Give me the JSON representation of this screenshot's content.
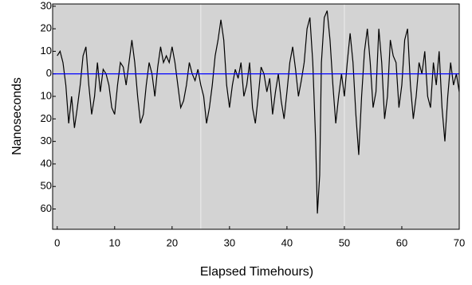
{
  "chart_data": {
    "type": "line",
    "xlabel": "Elapsed Timehours)",
    "ylabel": "Nanoseconds",
    "xlim": [
      -0.8,
      70
    ],
    "ylim": [
      -69,
      31
    ],
    "xticks": [
      0,
      10,
      20,
      30,
      40,
      50,
      60,
      70
    ],
    "yticks": [
      30,
      20,
      10,
      0,
      {
        "value": -10,
        "label": "10"
      },
      {
        "value": -20,
        "label": "20"
      },
      {
        "value": -30,
        "label": "30"
      },
      {
        "value": -40,
        "label": "40"
      },
      {
        "value": -50,
        "label": "50"
      },
      {
        "value": -60,
        "label": "60"
      }
    ],
    "vertical_grid": [
      25,
      50
    ],
    "reference_line": {
      "value": 0,
      "color": "#0000ff"
    },
    "background": "#d3d3d3",
    "x": [
      0,
      0.5,
      1,
      1.5,
      2,
      2.5,
      3,
      3.5,
      4,
      4.5,
      5,
      5.5,
      6,
      6.5,
      7,
      7.5,
      8,
      8.5,
      9,
      9.5,
      10,
      10.5,
      11,
      11.5,
      12,
      12.5,
      13,
      13.5,
      14,
      14.5,
      15,
      15.5,
      16,
      16.5,
      17,
      17.5,
      18,
      18.5,
      19,
      19.5,
      20,
      20.5,
      21,
      21.5,
      22,
      22.5,
      23,
      23.5,
      24,
      24.5,
      25,
      25.5,
      26,
      26.5,
      27,
      27.5,
      28,
      28.5,
      29,
      29.5,
      30,
      30.5,
      31,
      31.5,
      32,
      32.5,
      33,
      33.5,
      34,
      34.5,
      35,
      35.5,
      36,
      36.5,
      37,
      37.5,
      38,
      38.5,
      39,
      39.5,
      40,
      40.5,
      41,
      41.5,
      42,
      42.5,
      43,
      43.5,
      44,
      44.5,
      45,
      45.3,
      45.7,
      46,
      46.5,
      47,
      47.5,
      48,
      48.5,
      49,
      49.5,
      50,
      50.5,
      51,
      51.5,
      52,
      52.5,
      53,
      53.5,
      54,
      54.5,
      55,
      55.5,
      56,
      56.5,
      57,
      57.5,
      58,
      58.5,
      59,
      59.5,
      60,
      60.5,
      61,
      61.5,
      62,
      62.5,
      63,
      63.5,
      64,
      64.5,
      65,
      65.5,
      66,
      66.5,
      67,
      67.5,
      68,
      68.5,
      69,
      69.5,
      70
    ],
    "series": [
      {
        "color": "#000000",
        "values": [
          8,
          10,
          5,
          -5,
          -22,
          -10,
          -24,
          -15,
          -5,
          8,
          12,
          -5,
          -18,
          -10,
          5,
          -8,
          2,
          0,
          -5,
          -15,
          -18,
          -5,
          5,
          3,
          -5,
          5,
          15,
          5,
          -10,
          -22,
          -18,
          -5,
          5,
          0,
          -10,
          3,
          12,
          5,
          8,
          5,
          12,
          5,
          -5,
          -15,
          -12,
          -5,
          5,
          0,
          -3,
          2,
          -5,
          -10,
          -22,
          -15,
          -5,
          8,
          15,
          24,
          15,
          -5,
          -15,
          -5,
          2,
          -2,
          5,
          -10,
          -5,
          5,
          -15,
          -22,
          -10,
          3,
          0,
          -8,
          -2,
          -18,
          -8,
          0,
          -12,
          -20,
          -8,
          5,
          12,
          2,
          -10,
          -3,
          5,
          20,
          25,
          5,
          -30,
          -62,
          -45,
          5,
          25,
          28,
          15,
          -5,
          -22,
          -10,
          0,
          -10,
          5,
          18,
          5,
          -18,
          -36,
          -10,
          10,
          20,
          5,
          -15,
          -8,
          20,
          5,
          -20,
          -10,
          15,
          8,
          5,
          -15,
          -5,
          15,
          20,
          -5,
          -20,
          -10,
          5,
          0,
          10,
          -10,
          -15,
          5,
          -5,
          10,
          -15,
          -30,
          -10,
          5,
          -5,
          0,
          -8
        ]
      }
    ]
  }
}
